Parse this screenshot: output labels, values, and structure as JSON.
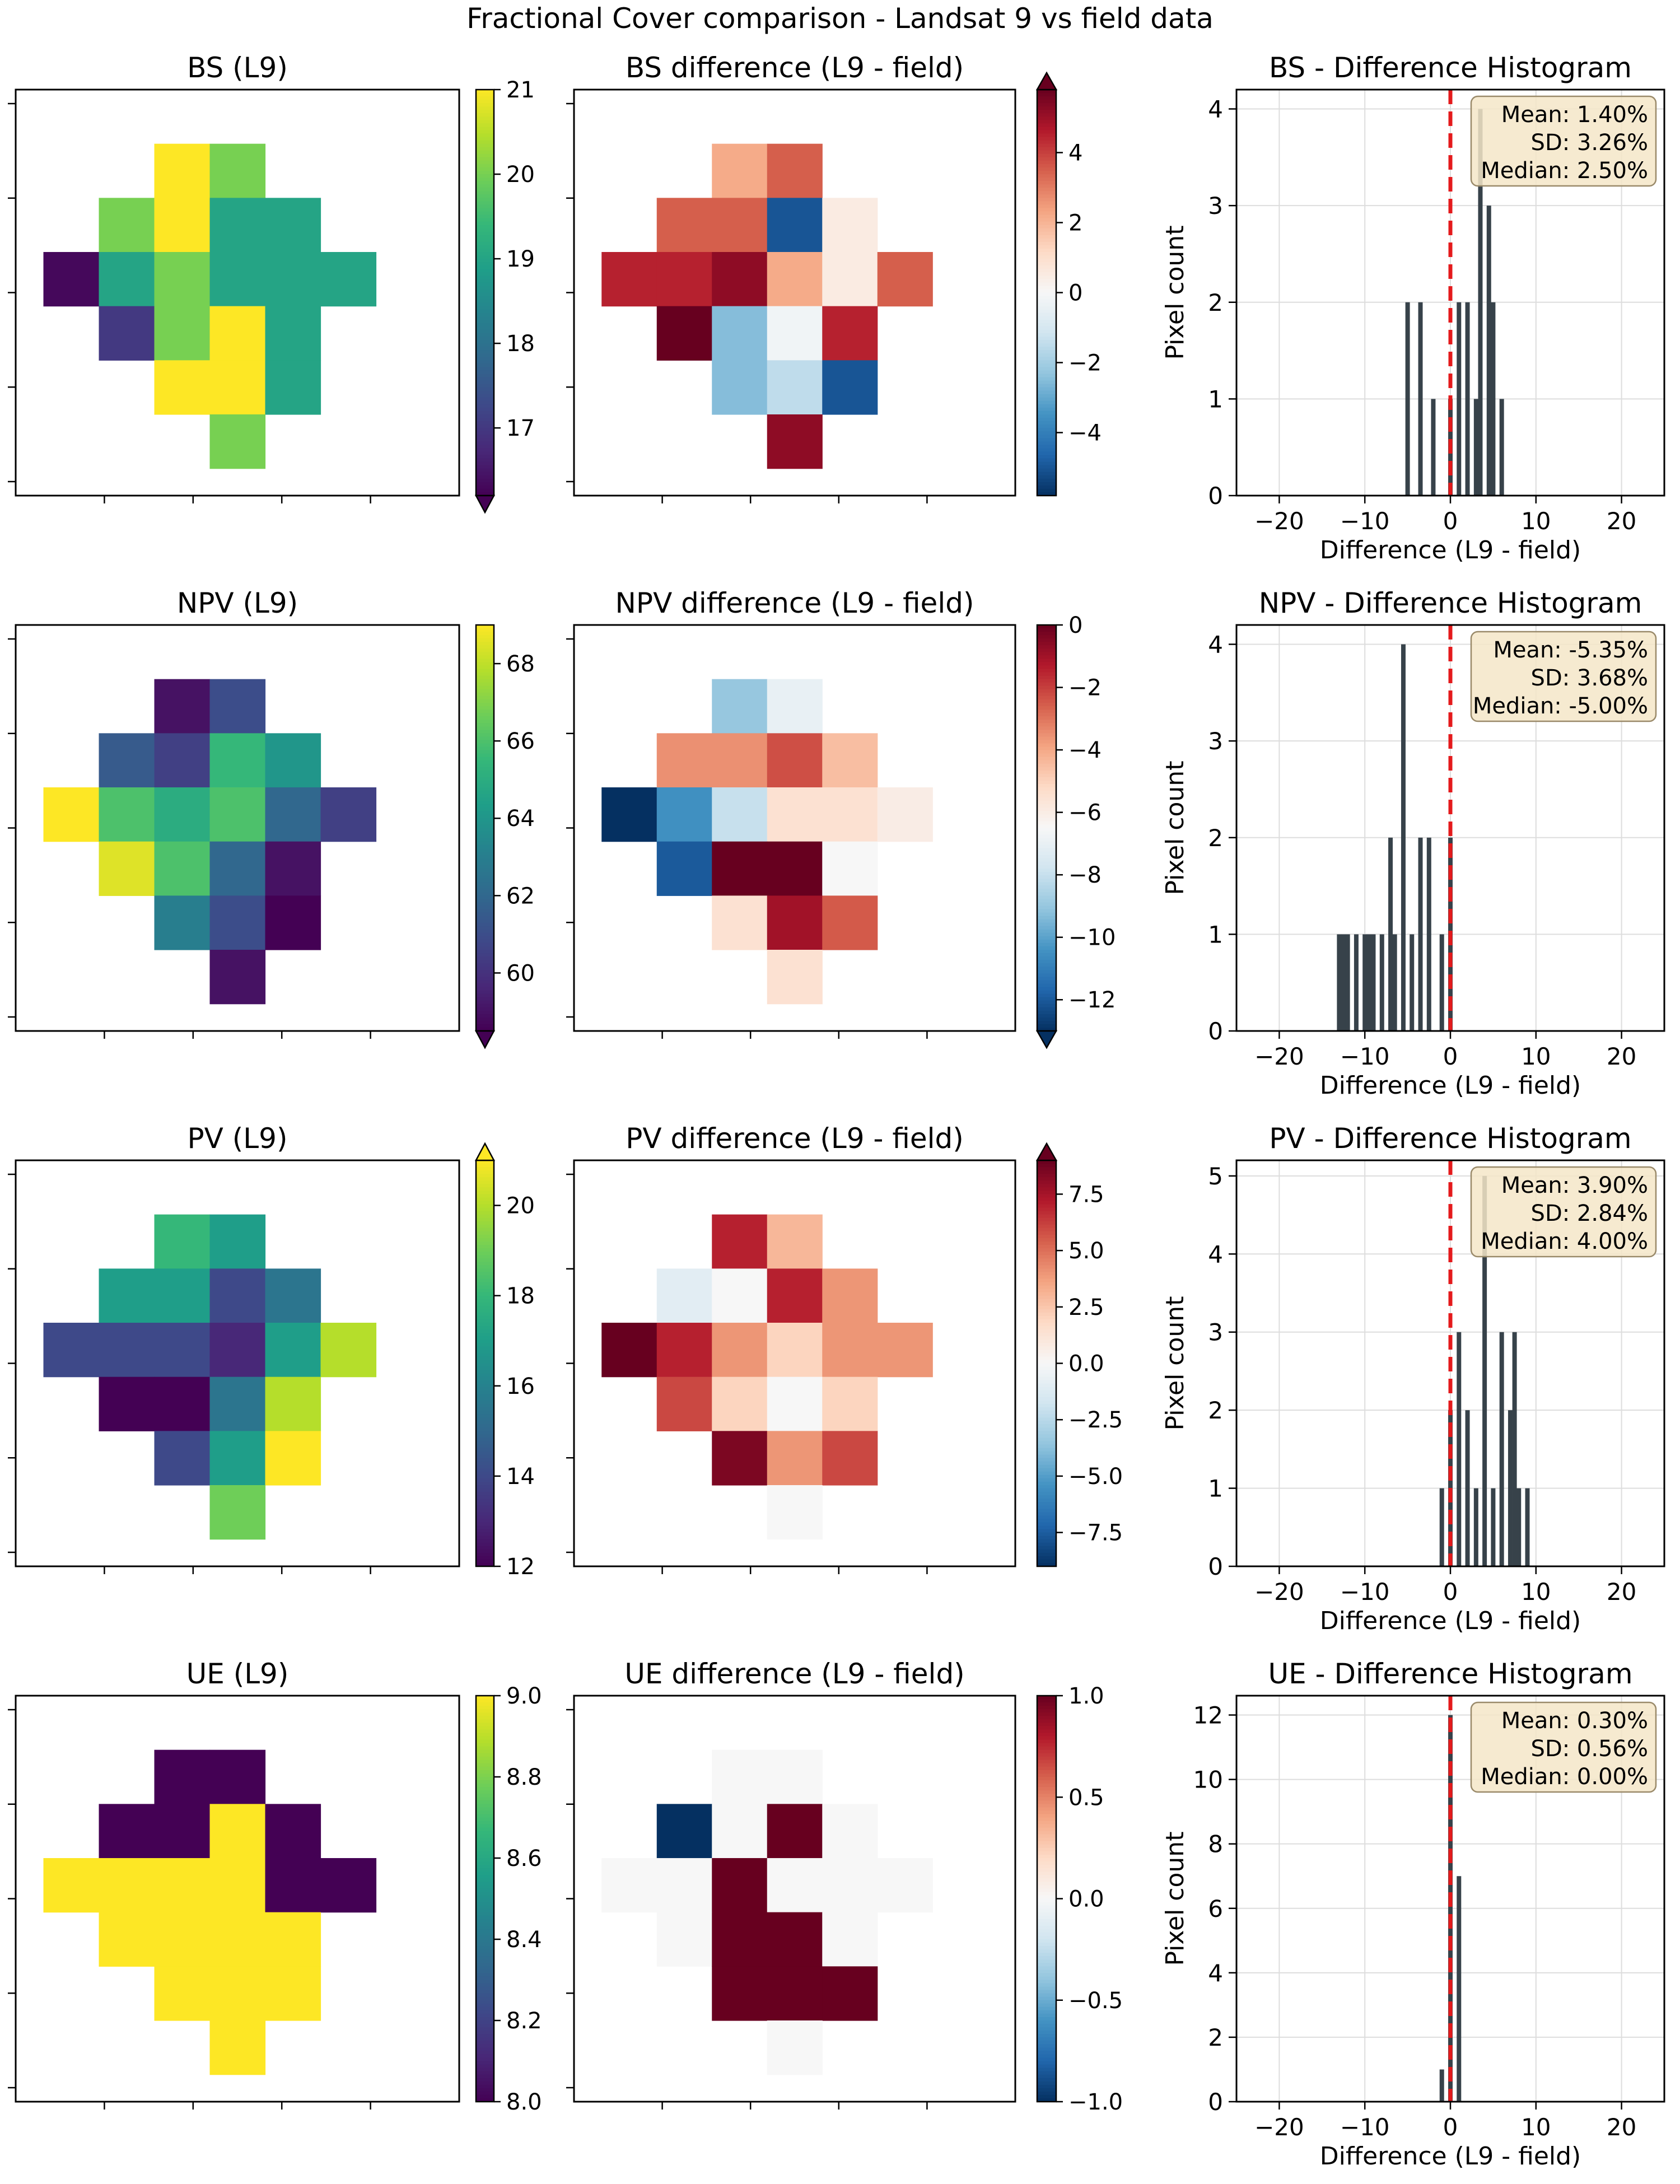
{
  "figure_title": "Fractional Cover comparison - Landsat 9 vs field data",
  "colors": {
    "viridis": [
      "#440154",
      "#482878",
      "#3e4989",
      "#31688e",
      "#26828e",
      "#1f9e89",
      "#35b779",
      "#6ece58",
      "#b5de2b",
      "#fde725"
    ],
    "rdbu_r": [
      "#053061",
      "#2166ac",
      "#4393c3",
      "#92c5de",
      "#d1e5f0",
      "#f7f7f7",
      "#fddbc7",
      "#f4a582",
      "#d6604d",
      "#b2182b",
      "#67001f"
    ],
    "hist_bar": "#37424a",
    "zero_line": "#e41a1c",
    "stats_box_fill": "#f5e6c8",
    "stats_box_edge": "#9a8a6a",
    "grid": "#dddddd"
  },
  "chart_data": [
    {
      "type": "heatmap",
      "id": "bs-l9",
      "title": "BS (L9)",
      "colormap": "viridis",
      "range": [
        16.2,
        21.0
      ],
      "colorbar_ticks": [
        "17",
        "18",
        "19",
        "20",
        "21"
      ],
      "colorbar_tick_values": [
        17,
        18,
        19,
        20,
        21
      ],
      "extend_min": true,
      "extend_max": false,
      "grid": [
        [
          null,
          null,
          null,
          null,
          null,
          null,
          null
        ],
        [
          null,
          null,
          21,
          20,
          null,
          null,
          null
        ],
        [
          null,
          20,
          21,
          19,
          19,
          null,
          null
        ],
        [
          16.3,
          19,
          20,
          19,
          19,
          19,
          null
        ],
        [
          null,
          17,
          20,
          21,
          19,
          null,
          null
        ],
        [
          null,
          null,
          21,
          21,
          19,
          null,
          null
        ],
        [
          null,
          null,
          null,
          20,
          null,
          null,
          null
        ]
      ]
    },
    {
      "type": "heatmap",
      "id": "bs-diff",
      "title": "BS difference (L9 - field)",
      "colormap": "rdbu_r",
      "range": [
        -5.8,
        5.8
      ],
      "colorbar_ticks": [
        "−4",
        "−2",
        "0",
        "2",
        "4"
      ],
      "colorbar_tick_values": [
        -4,
        -2,
        0,
        2,
        4
      ],
      "extend_min": false,
      "extend_max": true,
      "grid": [
        [
          null,
          null,
          null,
          null,
          null,
          null,
          null
        ],
        [
          null,
          null,
          2.2,
          3.5,
          null,
          null,
          null
        ],
        [
          null,
          3.5,
          3.5,
          -5,
          0.5,
          null,
          null
        ],
        [
          4.5,
          4.5,
          5.2,
          2.2,
          0.5,
          3.5,
          null
        ],
        [
          null,
          5.8,
          -2.5,
          -0.2,
          4.5,
          null,
          null
        ],
        [
          null,
          null,
          -2.5,
          -1.5,
          -5,
          null,
          null
        ],
        [
          null,
          null,
          null,
          5.2,
          null,
          null,
          null
        ]
      ]
    },
    {
      "type": "histogram",
      "id": "bs-hist",
      "title": "BS - Difference Histogram",
      "xlabel": "Difference (L9 - field)",
      "ylabel": "Pixel count",
      "xlim": [
        -25,
        25
      ],
      "ylim": [
        0,
        4.2
      ],
      "x_ticks": [
        "−20",
        "−10",
        "0",
        "10",
        "20"
      ],
      "x_tick_values": [
        -20,
        -10,
        0,
        10,
        20
      ],
      "y_ticks": [
        "0",
        "1",
        "2",
        "3",
        "4"
      ],
      "y_tick_values": [
        0,
        1,
        2,
        3,
        4
      ],
      "bins": [
        [
          -5,
          2
        ],
        [
          -3.5,
          2
        ],
        [
          -2,
          1
        ],
        [
          0,
          1
        ],
        [
          1,
          2
        ],
        [
          2,
          2
        ],
        [
          3,
          1
        ],
        [
          3.5,
          4
        ],
        [
          4.5,
          3
        ],
        [
          5,
          2
        ],
        [
          6,
          1
        ]
      ],
      "stats": [
        "Mean: 1.40%",
        "SD: 3.26%",
        "Median: 2.50%"
      ]
    },
    {
      "type": "heatmap",
      "id": "npv-l9",
      "title": "NPV (L9)",
      "colormap": "viridis",
      "range": [
        58.5,
        69.0
      ],
      "colorbar_ticks": [
        "60",
        "62",
        "64",
        "66",
        "68"
      ],
      "colorbar_tick_values": [
        60,
        62,
        64,
        66,
        68
      ],
      "extend_min": true,
      "extend_max": false,
      "grid": [
        [
          null,
          null,
          null,
          null,
          null,
          null,
          null
        ],
        [
          null,
          null,
          59,
          61,
          null,
          null,
          null
        ],
        [
          null,
          61.5,
          60.5,
          65.5,
          64,
          null,
          null
        ],
        [
          69,
          66,
          65,
          66,
          62,
          60.5,
          null
        ],
        [
          null,
          68.5,
          66,
          62,
          59,
          null,
          null
        ],
        [
          null,
          null,
          63,
          61,
          58.5,
          null,
          null
        ],
        [
          null,
          null,
          null,
          59,
          null,
          null,
          null
        ]
      ]
    },
    {
      "type": "heatmap",
      "id": "npv-diff",
      "title": "NPV difference (L9 - field)",
      "colormap": "rdbu_r",
      "range": [
        -13,
        0
      ],
      "colorbar_ticks": [
        "−12",
        "−10",
        "−8",
        "−6",
        "−4",
        "−2",
        "0"
      ],
      "colorbar_tick_values": [
        -12,
        -10,
        -8,
        -6,
        -4,
        -2,
        0
      ],
      "extend_min": true,
      "extend_max": false,
      "grid": [
        [
          null,
          null,
          null,
          null,
          null,
          null,
          null
        ],
        [
          null,
          null,
          -9,
          -7,
          null,
          null,
          null
        ],
        [
          null,
          -3.5,
          -3.5,
          -2.3,
          -4.5,
          null,
          null
        ],
        [
          -13,
          -10.5,
          -8,
          -5.5,
          -5.5,
          -6,
          null
        ],
        [
          null,
          -12,
          0,
          0,
          -6.5,
          null,
          null
        ],
        [
          null,
          null,
          -5.5,
          -1,
          -2.5,
          null,
          null
        ],
        [
          null,
          null,
          null,
          -5.5,
          null,
          null,
          null
        ]
      ]
    },
    {
      "type": "histogram",
      "id": "npv-hist",
      "title": "NPV - Difference Histogram",
      "xlabel": "Difference (L9 - field)",
      "ylabel": "Pixel count",
      "xlim": [
        -25,
        25
      ],
      "ylim": [
        0,
        4.2
      ],
      "x_ticks": [
        "−20",
        "−10",
        "0",
        "10",
        "20"
      ],
      "x_tick_values": [
        -20,
        -10,
        0,
        10,
        20
      ],
      "y_ticks": [
        "0",
        "1",
        "2",
        "3",
        "4"
      ],
      "y_tick_values": [
        0,
        1,
        2,
        3,
        4
      ],
      "bins": [
        [
          -13,
          1
        ],
        [
          -12.5,
          1
        ],
        [
          -12,
          1
        ],
        [
          -11,
          1
        ],
        [
          -10,
          1
        ],
        [
          -9.5,
          1
        ],
        [
          -9,
          1
        ],
        [
          -8,
          1
        ],
        [
          -7,
          2
        ],
        [
          -6.5,
          1
        ],
        [
          -5.5,
          4
        ],
        [
          -4.5,
          1
        ],
        [
          -3.5,
          2
        ],
        [
          -2.5,
          2
        ],
        [
          -1,
          1
        ],
        [
          0,
          2
        ]
      ],
      "stats": [
        "Mean: -5.35%",
        "SD: 3.68%",
        "Median: -5.00%"
      ]
    },
    {
      "type": "heatmap",
      "id": "pv-l9",
      "title": "PV (L9)",
      "colormap": "viridis",
      "range": [
        12,
        21
      ],
      "colorbar_ticks": [
        "12",
        "14",
        "16",
        "18",
        "20"
      ],
      "colorbar_tick_values": [
        12,
        14,
        16,
        18,
        20
      ],
      "extend_min": false,
      "extend_max": true,
      "grid": [
        [
          null,
          null,
          null,
          null,
          null,
          null,
          null
        ],
        [
          null,
          null,
          18,
          17,
          null,
          null,
          null
        ],
        [
          null,
          17,
          17,
          14,
          15.5,
          null,
          null
        ],
        [
          14,
          14,
          14,
          13,
          17,
          20,
          null
        ],
        [
          null,
          12,
          12,
          15.5,
          20,
          null,
          null
        ],
        [
          null,
          null,
          14,
          17,
          21,
          null,
          null
        ],
        [
          null,
          null,
          null,
          19,
          null,
          null,
          null
        ]
      ]
    },
    {
      "type": "heatmap",
      "id": "pv-diff",
      "title": "PV difference (L9 - field)",
      "colormap": "rdbu_r",
      "range": [
        -9,
        9
      ],
      "colorbar_ticks": [
        "−7.5",
        "−5.0",
        "−2.5",
        "0.0",
        "2.5",
        "5.0",
        "7.5"
      ],
      "colorbar_tick_values": [
        -7.5,
        -5,
        -2.5,
        0,
        2.5,
        5,
        7.5
      ],
      "extend_min": false,
      "extend_max": true,
      "grid": [
        [
          null,
          null,
          null,
          null,
          null,
          null,
          null
        ],
        [
          null,
          null,
          7,
          3,
          null,
          null,
          null
        ],
        [
          null,
          -1,
          0,
          7,
          4,
          null,
          null
        ],
        [
          9,
          7,
          4,
          2,
          4,
          4,
          null
        ],
        [
          null,
          6,
          2,
          0,
          2,
          null,
          null
        ],
        [
          null,
          null,
          8.5,
          4,
          6,
          null,
          null
        ],
        [
          null,
          null,
          null,
          0,
          null,
          null,
          null
        ]
      ]
    },
    {
      "type": "histogram",
      "id": "pv-hist",
      "title": "PV - Difference Histogram",
      "xlabel": "Difference (L9 - field)",
      "ylabel": "Pixel count",
      "xlim": [
        -25,
        25
      ],
      "ylim": [
        0,
        5.2
      ],
      "x_ticks": [
        "−20",
        "−10",
        "0",
        "10",
        "20"
      ],
      "x_tick_values": [
        -20,
        -10,
        0,
        10,
        20
      ],
      "y_ticks": [
        "0",
        "1",
        "2",
        "3",
        "4",
        "5"
      ],
      "y_tick_values": [
        0,
        1,
        2,
        3,
        4,
        5
      ],
      "bins": [
        [
          -1,
          1
        ],
        [
          0,
          2
        ],
        [
          1,
          3
        ],
        [
          2,
          2
        ],
        [
          3,
          1
        ],
        [
          4,
          5
        ],
        [
          5,
          1
        ],
        [
          6,
          3
        ],
        [
          7,
          2
        ],
        [
          7.5,
          3
        ],
        [
          8,
          1
        ],
        [
          9,
          1
        ]
      ],
      "stats": [
        "Mean: 3.90%",
        "SD: 2.84%",
        "Median: 4.00%"
      ]
    },
    {
      "type": "heatmap",
      "id": "ue-l9",
      "title": "UE (L9)",
      "colormap": "viridis",
      "range": [
        8.0,
        9.0
      ],
      "colorbar_ticks": [
        "8.0",
        "8.2",
        "8.4",
        "8.6",
        "8.8",
        "9.0"
      ],
      "colorbar_tick_values": [
        8,
        8.2,
        8.4,
        8.6,
        8.8,
        9
      ],
      "extend_min": false,
      "extend_max": false,
      "grid": [
        [
          null,
          null,
          null,
          null,
          null,
          null,
          null
        ],
        [
          null,
          null,
          8,
          8,
          null,
          null,
          null
        ],
        [
          null,
          8,
          8,
          9,
          8,
          null,
          null
        ],
        [
          9,
          9,
          9,
          9,
          8,
          8,
          null
        ],
        [
          null,
          9,
          9,
          9,
          9,
          null,
          null
        ],
        [
          null,
          null,
          9,
          9,
          9,
          null,
          null
        ],
        [
          null,
          null,
          null,
          9,
          null,
          null,
          null
        ]
      ]
    },
    {
      "type": "heatmap",
      "id": "ue-diff",
      "title": "UE difference (L9 - field)",
      "colormap": "rdbu_r",
      "range": [
        -1,
        1
      ],
      "colorbar_ticks": [
        "−1.0",
        "−0.5",
        "0.0",
        "0.5",
        "1.0"
      ],
      "colorbar_tick_values": [
        -1,
        -0.5,
        0,
        0.5,
        1
      ],
      "extend_min": false,
      "extend_max": false,
      "grid": [
        [
          null,
          null,
          null,
          null,
          null,
          null,
          null
        ],
        [
          null,
          null,
          0,
          0,
          null,
          null,
          null
        ],
        [
          null,
          -1,
          0,
          1,
          0,
          null,
          null
        ],
        [
          0,
          0,
          1,
          0,
          0,
          0,
          null
        ],
        [
          null,
          0,
          1,
          1,
          0,
          null,
          null
        ],
        [
          null,
          null,
          1,
          1,
          1,
          null,
          null
        ],
        [
          null,
          null,
          null,
          0,
          null,
          null,
          null
        ]
      ]
    },
    {
      "type": "histogram",
      "id": "ue-hist",
      "title": "UE - Difference Histogram",
      "xlabel": "Difference (L9 - field)",
      "ylabel": "Pixel count",
      "xlim": [
        -25,
        25
      ],
      "ylim": [
        0,
        12.6
      ],
      "x_ticks": [
        "−20",
        "−10",
        "0",
        "10",
        "20"
      ],
      "x_tick_values": [
        -20,
        -10,
        0,
        10,
        20
      ],
      "y_ticks": [
        "0",
        "2",
        "4",
        "6",
        "8",
        "10",
        "12"
      ],
      "y_tick_values": [
        0,
        2,
        4,
        6,
        8,
        10,
        12
      ],
      "bins": [
        [
          -1,
          1
        ],
        [
          0,
          12
        ],
        [
          1,
          7
        ]
      ],
      "stats": [
        "Mean: 0.30%",
        "SD: 0.56%",
        "Median: 0.00%"
      ]
    }
  ]
}
